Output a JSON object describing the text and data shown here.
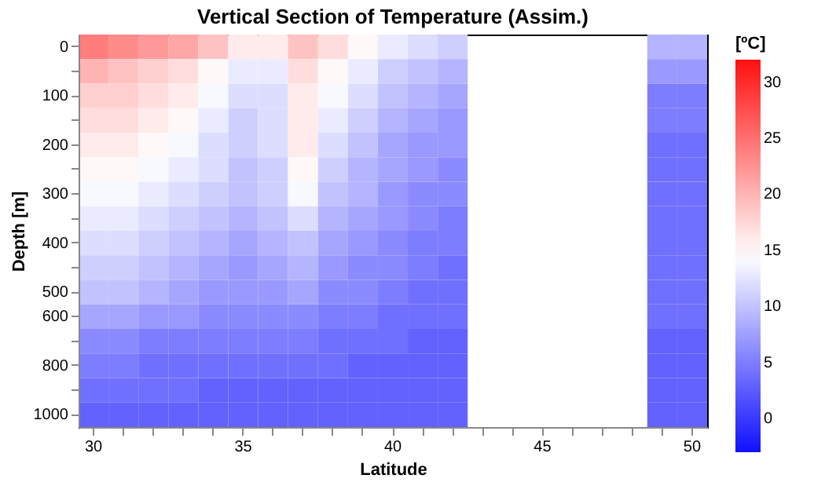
{
  "chart_data": {
    "type": "heatmap",
    "title": "Vertical Section of Temperature (Assim.)",
    "xlabel": "Latitude",
    "ylabel": "Depth [m]",
    "clabel": "[ºC]",
    "categories": [
      "30",
      null,
      null,
      null,
      null,
      "35",
      null,
      null,
      null,
      null,
      "40",
      null,
      null,
      null,
      null,
      "45",
      null,
      null,
      null,
      null,
      "50"
    ],
    "y_categories": [
      "0",
      null,
      "100",
      null,
      "200",
      null,
      "300",
      null,
      "400",
      null,
      "500",
      "600",
      null,
      "800",
      null,
      "1000"
    ],
    "cells": [
      [
        24,
        23,
        22,
        21,
        19,
        16,
        16,
        19,
        17,
        15,
        13,
        12,
        11,
        null,
        null,
        null,
        null,
        null,
        null,
        9,
        9
      ],
      [
        20,
        19,
        18,
        17,
        15,
        13,
        13,
        17,
        15,
        13,
        11,
        10,
        9,
        null,
        null,
        null,
        null,
        null,
        null,
        7,
        7
      ],
      [
        18,
        18,
        17,
        16,
        14,
        12,
        12,
        16,
        14,
        12,
        10,
        9,
        8,
        null,
        null,
        null,
        null,
        null,
        null,
        5,
        5
      ],
      [
        17,
        17,
        16,
        15,
        13,
        11,
        12,
        16,
        13,
        11,
        9,
        8,
        7,
        null,
        null,
        null,
        null,
        null,
        null,
        5,
        5
      ],
      [
        16,
        16,
        15,
        14,
        12,
        11,
        12,
        16,
        12,
        10,
        8,
        7,
        7,
        null,
        null,
        null,
        null,
        null,
        null,
        4,
        4
      ],
      [
        15,
        15,
        14,
        13,
        12,
        10,
        11,
        15,
        11,
        9,
        8,
        7,
        6,
        null,
        null,
        null,
        null,
        null,
        null,
        4,
        4
      ],
      [
        14,
        14,
        13,
        12,
        11,
        10,
        11,
        14,
        10,
        9,
        7,
        6,
        6,
        null,
        null,
        null,
        null,
        null,
        null,
        4,
        4
      ],
      [
        13,
        13,
        12,
        11,
        10,
        9,
        10,
        12,
        9,
        8,
        7,
        6,
        5,
        null,
        null,
        null,
        null,
        null,
        null,
        4,
        4
      ],
      [
        12,
        12,
        11,
        10,
        9,
        8,
        9,
        10,
        8,
        7,
        6,
        5,
        5,
        null,
        null,
        null,
        null,
        null,
        null,
        4,
        4
      ],
      [
        11,
        11,
        10,
        9,
        8,
        7,
        8,
        9,
        7,
        6,
        6,
        5,
        4,
        null,
        null,
        null,
        null,
        null,
        null,
        4,
        4
      ],
      [
        10,
        10,
        9,
        8,
        7,
        7,
        7,
        8,
        6,
        6,
        5,
        4,
        4,
        null,
        null,
        null,
        null,
        null,
        null,
        4,
        4
      ],
      [
        8,
        8,
        7,
        7,
        6,
        6,
        6,
        6,
        5,
        5,
        4,
        4,
        4,
        null,
        null,
        null,
        null,
        null,
        null,
        4,
        4
      ],
      [
        6,
        6,
        5,
        5,
        5,
        5,
        5,
        5,
        4,
        4,
        4,
        3,
        3,
        null,
        null,
        null,
        null,
        null,
        null,
        3,
        3
      ],
      [
        5,
        5,
        4,
        4,
        4,
        4,
        4,
        4,
        4,
        3,
        3,
        3,
        3,
        null,
        null,
        null,
        null,
        null,
        null,
        3,
        3
      ],
      [
        4,
        4,
        4,
        4,
        3,
        3,
        3,
        3,
        3,
        3,
        3,
        3,
        3,
        null,
        null,
        null,
        null,
        null,
        null,
        3,
        3
      ],
      [
        3,
        3,
        3,
        3,
        3,
        3,
        3,
        3,
        3,
        3,
        3,
        3,
        3,
        null,
        null,
        null,
        null,
        null,
        null,
        3,
        3
      ]
    ],
    "clim": [
      -3,
      32
    ],
    "cticks": [
      0,
      5,
      10,
      15,
      20,
      25,
      30
    ]
  }
}
